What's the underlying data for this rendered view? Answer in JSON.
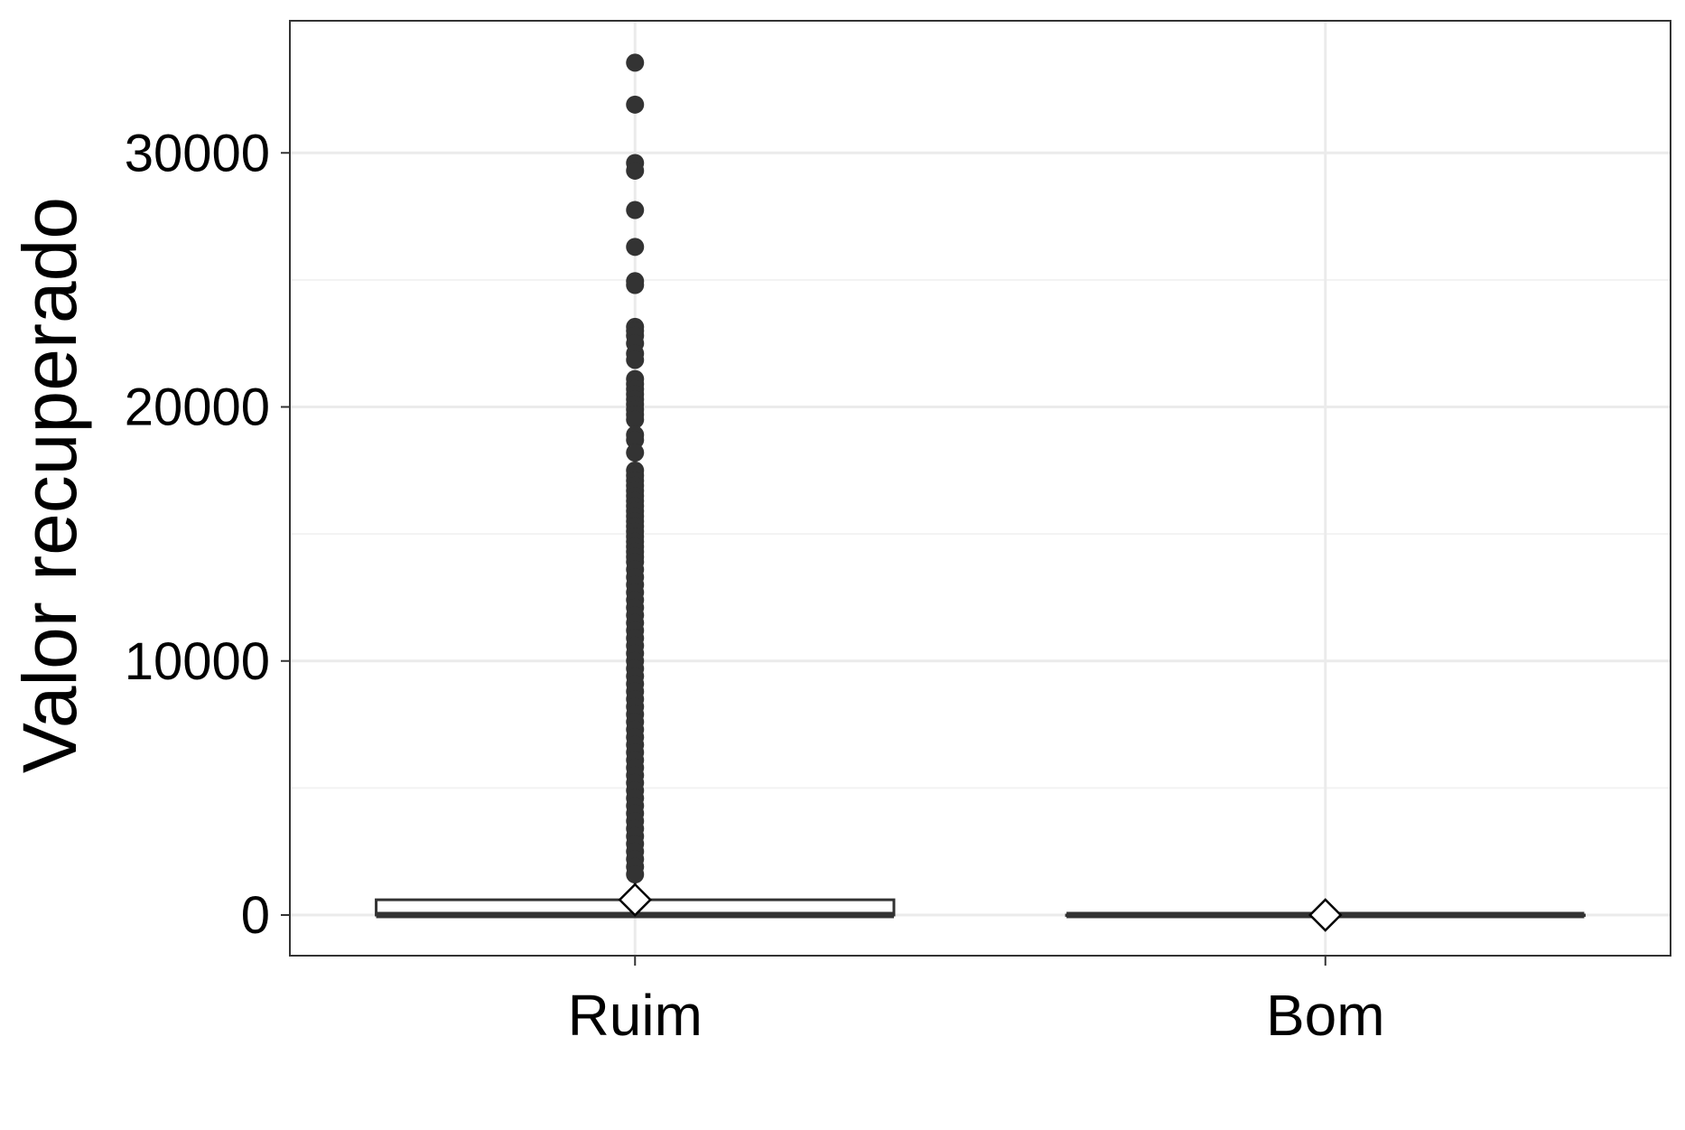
{
  "chart_data": {
    "type": "boxplot",
    "title": "",
    "xlabel": "",
    "ylabel": "Valor recuperado",
    "ylim": [
      -1600,
      35200
    ],
    "yticks": [
      0,
      10000,
      20000,
      30000
    ],
    "grid": true,
    "legend": "none",
    "categories": [
      "Ruim",
      "Bom"
    ],
    "boxes": [
      {
        "category": "Ruim",
        "min": 0,
        "q1": 0,
        "median": 0,
        "q3": 600,
        "max": 1450,
        "mean": 600,
        "outliers": [
          33550,
          31900,
          29600,
          29300,
          27750,
          26300,
          24950,
          24800,
          23150,
          23000,
          22800,
          22500,
          22100,
          21850,
          21100,
          20900,
          20700,
          20500,
          20300,
          20100,
          19900,
          19700,
          19500,
          18900,
          18700,
          18200,
          17500,
          17300,
          17100,
          16900,
          16700,
          16500,
          16300,
          16100,
          15900,
          15700,
          15500,
          15300,
          15100,
          14900,
          14700,
          14500,
          14300,
          14100,
          13900,
          13600,
          13300,
          13000,
          12700,
          12400,
          12100,
          11800,
          11500,
          11200,
          10900,
          10600,
          10300,
          10000,
          9700,
          9400,
          9100,
          8800,
          8500,
          8200,
          7900,
          7600,
          7300,
          7000,
          6700,
          6400,
          6100,
          5800,
          5500,
          5200,
          4900,
          4600,
          4300,
          4000,
          3700,
          3400,
          3100,
          2800,
          2500,
          2200,
          1900,
          1600
        ]
      },
      {
        "category": "Bom",
        "min": 0,
        "q1": 0,
        "median": 0,
        "q3": 0,
        "max": 0,
        "mean": 0,
        "outliers": []
      }
    ],
    "colors": {
      "box_fill": "#ffffff",
      "box_line": "#333333",
      "outlier": "#333333",
      "grid_major": "#ebebeb",
      "grid_minor": "#f2f2f2",
      "panel_border": "#333333",
      "mean_marker_fill": "#ffffff",
      "mean_marker_line": "#000000"
    }
  }
}
